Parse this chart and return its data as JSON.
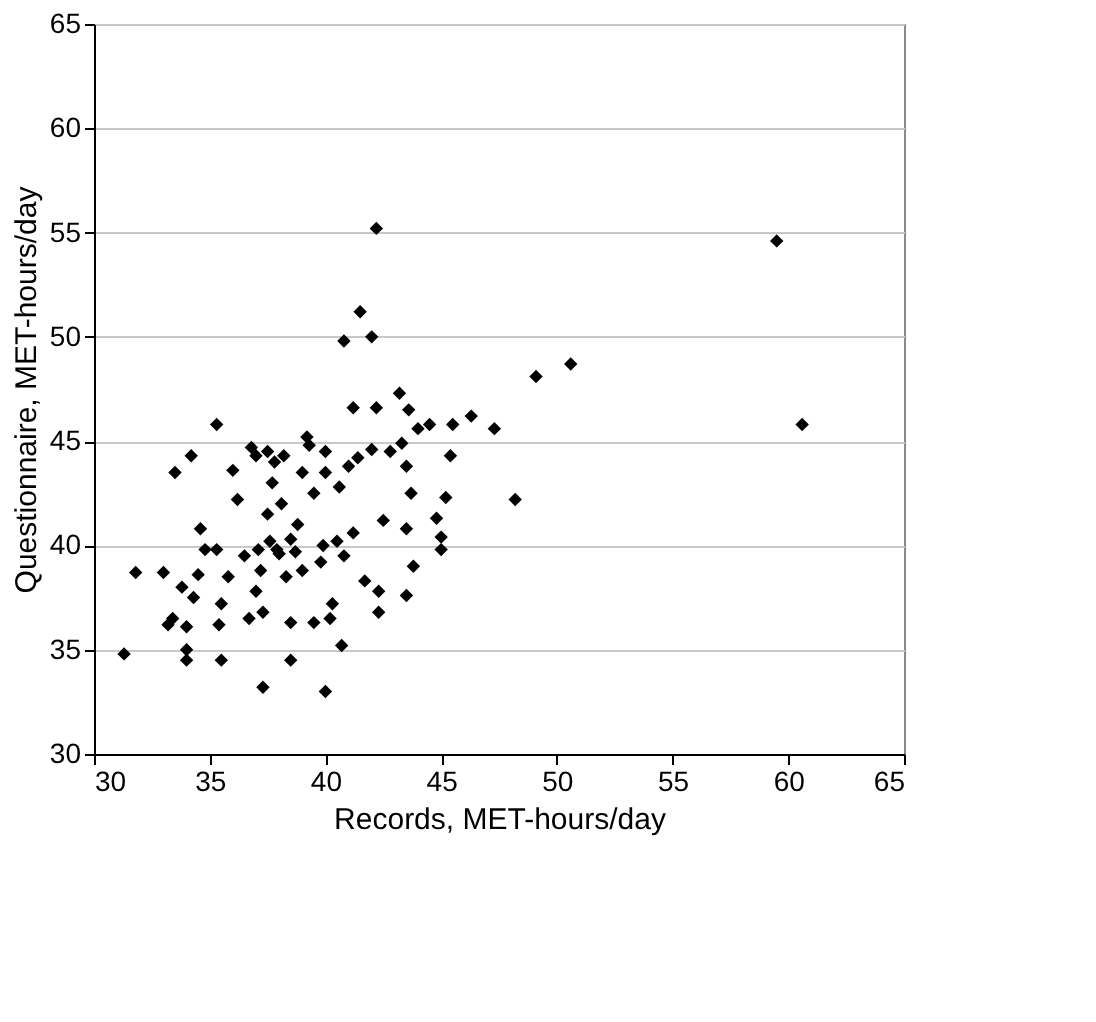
{
  "chart_data": {
    "type": "scatter",
    "xlabel": "Records, MET-hours/day",
    "ylabel": "Questionnaire, MET-hours/day",
    "x": [
      31.3,
      31.8,
      33.0,
      33.2,
      33.4,
      33.5,
      33.8,
      34.0,
      34.0,
      34.0,
      34.2,
      34.3,
      34.5,
      34.6,
      34.8,
      35.3,
      35.3,
      35.4,
      35.5,
      35.5,
      35.8,
      36.0,
      36.2,
      36.5,
      36.7,
      36.8,
      37.0,
      37.0,
      37.1,
      37.2,
      37.3,
      37.3,
      37.5,
      37.5,
      37.6,
      37.7,
      37.8,
      37.9,
      38.0,
      38.1,
      38.2,
      38.3,
      38.5,
      38.5,
      38.5,
      38.7,
      38.8,
      39.0,
      39.0,
      39.2,
      39.3,
      39.5,
      39.5,
      39.8,
      39.9,
      40.0,
      40.0,
      40.0,
      40.2,
      40.3,
      40.5,
      40.6,
      40.7,
      40.8,
      40.8,
      41.0,
      41.2,
      41.2,
      41.4,
      41.5,
      41.7,
      42.0,
      42.0,
      42.2,
      42.2,
      42.3,
      42.3,
      42.5,
      42.8,
      43.2,
      43.3,
      43.5,
      43.5,
      43.5,
      43.6,
      43.7,
      43.8,
      44.0,
      44.5,
      44.8,
      45.0,
      45.0,
      45.2,
      45.5,
      45.4,
      46.3,
      47.3,
      48.2,
      49.1,
      50.6,
      59.5,
      60.6
    ],
    "values": [
      34.8,
      38.7,
      38.7,
      36.2,
      36.5,
      43.5,
      38.0,
      36.1,
      35.0,
      34.5,
      44.3,
      37.5,
      38.6,
      40.8,
      39.8,
      39.8,
      45.8,
      36.2,
      37.2,
      34.5,
      38.5,
      43.6,
      42.2,
      39.5,
      36.5,
      44.7,
      44.3,
      37.8,
      39.8,
      38.8,
      33.2,
      36.8,
      44.5,
      41.5,
      40.2,
      43.0,
      44.0,
      39.8,
      39.6,
      42.0,
      44.3,
      38.5,
      40.3,
      36.3,
      34.5,
      39.7,
      41.0,
      38.8,
      43.5,
      45.2,
      44.8,
      42.5,
      36.3,
      39.2,
      40.0,
      44.5,
      43.5,
      33.0,
      36.5,
      37.2,
      40.2,
      42.8,
      35.2,
      39.5,
      49.8,
      43.8,
      40.6,
      46.6,
      44.2,
      51.2,
      38.3,
      50.0,
      44.6,
      46.6,
      55.2,
      37.8,
      36.8,
      41.2,
      44.5,
      47.3,
      44.9,
      43.8,
      40.8,
      37.6,
      46.5,
      42.5,
      39.0,
      45.6,
      45.8,
      41.3,
      39.8,
      40.4,
      42.3,
      45.8,
      44.3,
      46.2,
      45.6,
      42.2,
      48.1,
      48.7,
      54.6,
      45.8
    ],
    "color": "#000000",
    "marker": "diamond",
    "grid": "y",
    "xlim": [
      30,
      65
    ],
    "xticks": [
      30,
      35,
      40,
      45,
      50,
      55,
      60,
      65
    ],
    "ylim": [
      30,
      65
    ],
    "yticks": [
      30,
      35,
      40,
      45,
      50,
      55,
      60,
      65
    ]
  }
}
